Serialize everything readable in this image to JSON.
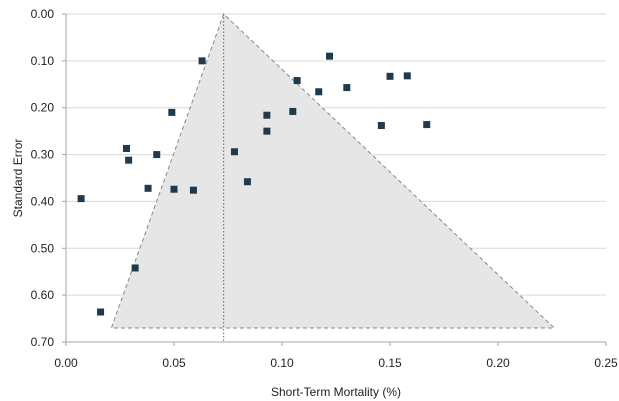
{
  "chart_data": {
    "type": "scatter",
    "title": "",
    "xlabel": "Short-Term Mortality (%)",
    "ylabel": "Standard Error",
    "xlim": [
      0,
      0.25
    ],
    "ylim": [
      0,
      0.7
    ],
    "y_reversed": true,
    "x_ticks": [
      "0.00",
      "0.05",
      "0.10",
      "0.15",
      "0.20",
      "0.25"
    ],
    "y_ticks": [
      "0.00",
      "0.10",
      "0.20",
      "0.30",
      "0.40",
      "0.50",
      "0.60",
      "0.70"
    ],
    "grid": "horizontal",
    "pooled_estimate": 0.073,
    "funnel_limits": {
      "apex": [
        0.073,
        0.0
      ],
      "base_left": [
        0.021,
        0.67
      ],
      "base_right": [
        0.226,
        0.67
      ]
    },
    "points": [
      {
        "x": 0.007,
        "y": 0.394
      },
      {
        "x": 0.016,
        "y": 0.636
      },
      {
        "x": 0.028,
        "y": 0.287
      },
      {
        "x": 0.029,
        "y": 0.312
      },
      {
        "x": 0.032,
        "y": 0.542
      },
      {
        "x": 0.038,
        "y": 0.372
      },
      {
        "x": 0.042,
        "y": 0.3
      },
      {
        "x": 0.049,
        "y": 0.21
      },
      {
        "x": 0.05,
        "y": 0.374
      },
      {
        "x": 0.059,
        "y": 0.376
      },
      {
        "x": 0.063,
        "y": 0.1
      },
      {
        "x": 0.078,
        "y": 0.294
      },
      {
        "x": 0.084,
        "y": 0.358
      },
      {
        "x": 0.093,
        "y": 0.216
      },
      {
        "x": 0.093,
        "y": 0.25
      },
      {
        "x": 0.105,
        "y": 0.208
      },
      {
        "x": 0.107,
        "y": 0.142
      },
      {
        "x": 0.117,
        "y": 0.166
      },
      {
        "x": 0.122,
        "y": 0.09
      },
      {
        "x": 0.13,
        "y": 0.157
      },
      {
        "x": 0.146,
        "y": 0.238
      },
      {
        "x": 0.15,
        "y": 0.133
      },
      {
        "x": 0.158,
        "y": 0.132
      },
      {
        "x": 0.167,
        "y": 0.236
      }
    ],
    "colors": {
      "marker": "#1f3a4d",
      "funnel_fill": "#e6e6e6",
      "funnel_line": "#888888",
      "grid": "#d9d9d9",
      "axis": "#a6a6a6"
    }
  }
}
